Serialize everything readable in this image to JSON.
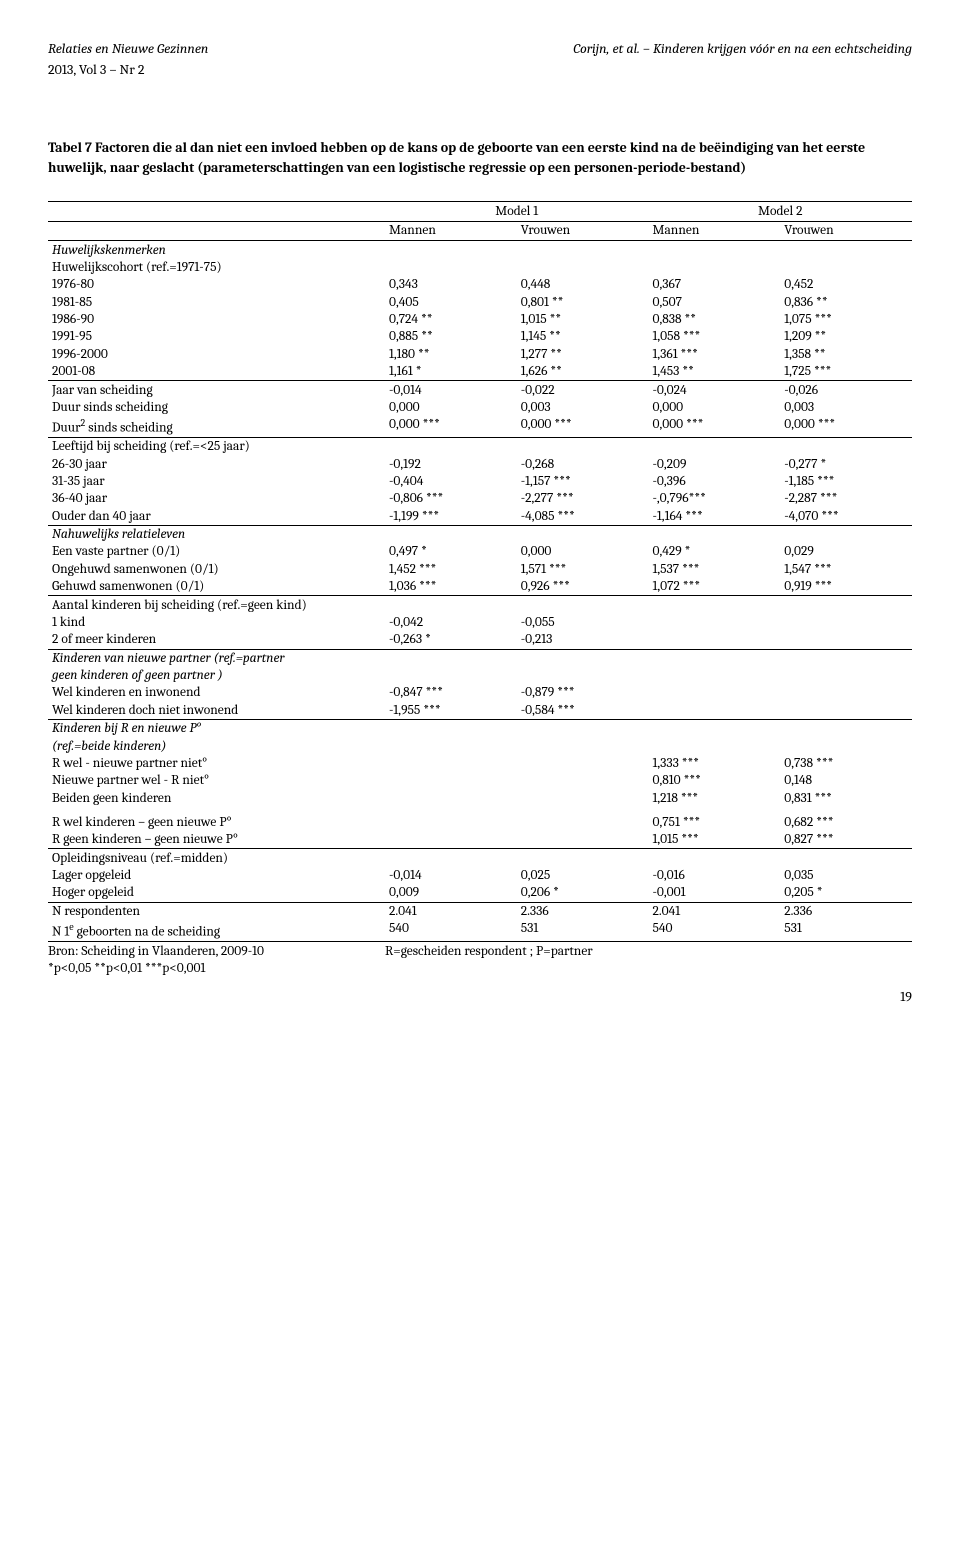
{
  "header": {
    "journal": "Relaties en Nieuwe Gezinnen",
    "citation": "Corijn, et al. – Kinderen krijgen vóór en na een echtscheiding",
    "issue": "2013, Vol 3 – Nr 2"
  },
  "title": "Tabel 7 Factoren die al dan niet een invloed hebben op de kans op de geboorte van een eerste kind na de beëindiging van het eerste huwelijk, naar geslacht (parameterschattingen van een logistische regressie op een personen-periode-bestand)",
  "columns": {
    "model1": "Model 1",
    "model2": "Model 2",
    "mannen": "Mannen",
    "vrouwen": "Vrouwen"
  },
  "sections": {
    "huwelijkskenmerken": "Huwelijkskenmerken",
    "cohort": "Huwelijkscohort (ref.=1971-75)",
    "leeftijd": "Leeftijd bij scheiding (ref.=<25 jaar)",
    "nahuw": "Nahuwelijks relatieleven",
    "aantal": "Aantal kinderen bij scheiding (ref.=geen kind)",
    "kinderen_np": "Kinderen van nieuwe partner (ref.=partner",
    "kinderen_np2": "geen kinderen of geen partner )",
    "kinderen_rp": "Kinderen bij R en nieuwe P°",
    "kinderen_rp2": "(ref.=beide kinderen)",
    "opleiding": "Opleidingsniveau (ref.=midden)"
  },
  "rows": {
    "c1976": {
      "label": "1976-80",
      "v": [
        "0,343",
        "0,448",
        "0,367",
        "0,452"
      ]
    },
    "c1981": {
      "label": "1981-85",
      "v": [
        "0,405",
        "0,801 **",
        "0,507",
        "0,836 **"
      ]
    },
    "c1986": {
      "label": "1986-90",
      "v": [
        "0,724 **",
        "1,015 **",
        "0,838 **",
        "1,075 ***"
      ]
    },
    "c1991": {
      "label": "1991-95",
      "v": [
        "0,885 **",
        "1,145 **",
        "1,058 ***",
        "1,209 **"
      ]
    },
    "c1996": {
      "label": "1996-2000",
      "v": [
        "1,180 **",
        "1,277 **",
        "1,361 ***",
        "1,358 **"
      ]
    },
    "c2001": {
      "label": "2001-08",
      "v": [
        "1,161 *",
        "1,626 **",
        "1,453 **",
        "1,725 ***"
      ]
    },
    "jaar": {
      "label": "Jaar van scheiding",
      "v": [
        "-0,014",
        "-0,022",
        "-0,024",
        "-0,026"
      ]
    },
    "duur": {
      "label": "Duur sinds scheiding",
      "v": [
        "0,000",
        "0,003",
        "0,000",
        "0,003"
      ]
    },
    "duur2_label": "Duur",
    "duur2_suffix": " sinds scheiding",
    "duur2_sup": "2",
    "duur2": {
      "v": [
        "0,000 ***",
        "0,000 ***",
        "0,000 ***",
        "0,000 ***"
      ]
    },
    "a26": {
      "label": "26-30 jaar",
      "v": [
        "-0,192",
        "-0,268",
        "-0,209",
        "-0,277 *"
      ]
    },
    "a31": {
      "label": "31-35 jaar",
      "v": [
        "-0,404",
        "-1,157 ***",
        "-0,396",
        "-1,185 ***"
      ]
    },
    "a36": {
      "label": "36-40 jaar",
      "v": [
        "-0,806 ***",
        "-2,277 ***",
        "-,0,796***",
        "-2,287 ***"
      ]
    },
    "a40": {
      "label": "Ouder dan 40 jaar",
      "v": [
        "-1,199 ***",
        "-4,085 ***",
        "-1,164 ***",
        "-4,070 ***"
      ]
    },
    "vaste": {
      "label": "Een vaste partner (0/1)",
      "v": [
        "0,497 *",
        "0,000",
        "0,429 *",
        "0,029"
      ]
    },
    "ongeh": {
      "label": "Ongehuwd samenwonen (0/1)",
      "v": [
        "1,452 ***",
        "1,571 ***",
        "1,537 ***",
        "1,547 ***"
      ]
    },
    "gehuwd": {
      "label": "Gehuwd samenwonen (0/1)",
      "v": [
        "1,036 ***",
        "0,926 ***",
        "1,072 ***",
        "0,919 ***"
      ]
    },
    "k1": {
      "label": "1 kind",
      "v": [
        "-0,042",
        "-0,055",
        "",
        ""
      ]
    },
    "k2": {
      "label": "2 of meer kinderen",
      "v": [
        "-0,263 *",
        "-0,213",
        "",
        ""
      ]
    },
    "welkin": {
      "label": "Wel kinderen en inwonend",
      "v": [
        "-0,847 ***",
        "-0,879 ***",
        "",
        ""
      ]
    },
    "welkdn": {
      "label": "Wel kinderen doch niet inwonend",
      "v": [
        "-1,955 ***",
        "-0,584 ***",
        "",
        ""
      ]
    },
    "rwel": {
      "label": "R wel - nieuwe partner niet°",
      "v": [
        "",
        "",
        "1,333 ***",
        "0,738 ***"
      ]
    },
    "npwel": {
      "label": "Nieuwe partner wel - R niet°",
      "v": [
        "",
        "",
        "0,810 ***",
        "0,148"
      ]
    },
    "beiden": {
      "label": "Beiden geen kinderen",
      "v": [
        "",
        "",
        "1,218 ***",
        "0,831 ***"
      ]
    },
    "rwelk_gp": {
      "label": "R wel kinderen – geen nieuwe P°",
      "v": [
        "",
        "",
        "0,751 ***",
        "0,682 ***"
      ]
    },
    "rgeen_gp": {
      "label": "R geen kinderen – geen nieuwe P°",
      "v": [
        "",
        "",
        "1,015 ***",
        "0,827 ***"
      ]
    },
    "lager": {
      "label": "Lager opgeleid",
      "v": [
        "-0,014",
        "0,025",
        "-0,016",
        "0,035"
      ]
    },
    "hoger": {
      "label": "Hoger opgeleid",
      "v": [
        "0,009",
        "0,206 *",
        "-0,001",
        "0,205 *"
      ]
    },
    "nresp": {
      "label": "N respondenten",
      "v": [
        "2.041",
        "2.336",
        "2.041",
        "2.336"
      ]
    },
    "n1e_prefix": "N 1",
    "n1e_sup": "e",
    "n1e_suffix": " geboorten na de scheiding",
    "n1e": {
      "v": [
        "540",
        "531",
        "540",
        "531"
      ]
    }
  },
  "footer": {
    "bron": "Bron: Scheiding in Vlaanderen, 2009-10",
    "rp": "R=gescheiden respondent ; P=partner",
    "sig": "*p<0,05 **p<0,01 ***p<0,001",
    "page": "19"
  }
}
